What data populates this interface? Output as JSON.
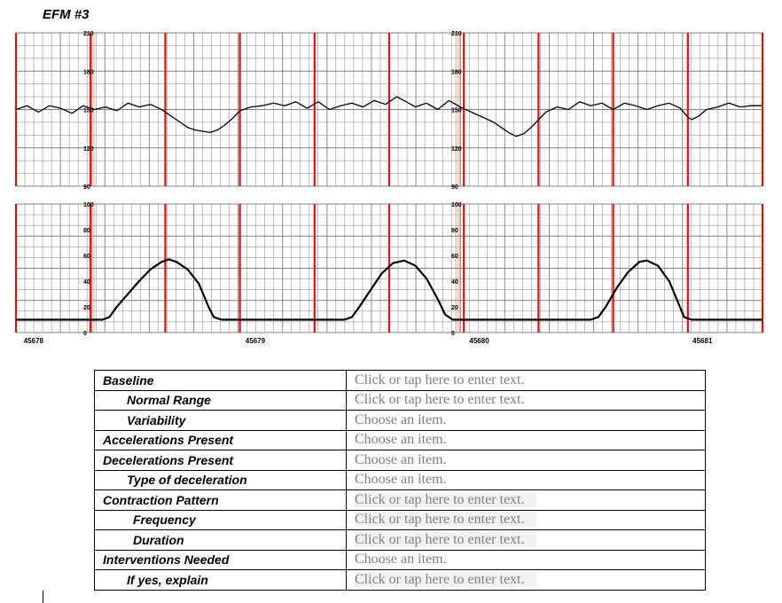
{
  "title": "EFM #3",
  "chart_data": [
    {
      "type": "line",
      "title": "",
      "ylabel": "",
      "ylim": [
        90,
        210
      ],
      "yticks": [
        90,
        120,
        150,
        180,
        210
      ],
      "x_range": [
        0,
        100
      ],
      "colors": {
        "line": "#000000",
        "grid": "#808080",
        "minute_line": "#e01010",
        "scale_band": "#f6d9cc"
      },
      "series": [
        {
          "values": [
            [
              0,
              150
            ],
            [
              1.5,
              153
            ],
            [
              3,
              148
            ],
            [
              4.5,
              153
            ],
            [
              6,
              151
            ],
            [
              7.5,
              147
            ],
            [
              9,
              153
            ],
            [
              10.5,
              150
            ],
            [
              12,
              152
            ],
            [
              13.5,
              149
            ],
            [
              15,
              155
            ],
            [
              16.5,
              152
            ],
            [
              18,
              154
            ],
            [
              19.5,
              150
            ],
            [
              21,
              144
            ],
            [
              22,
              140
            ],
            [
              23,
              136
            ],
            [
              24,
              134
            ],
            [
              25,
              133
            ],
            [
              26,
              132
            ],
            [
              27,
              134
            ],
            [
              28,
              138
            ],
            [
              29,
              143
            ],
            [
              30,
              149
            ],
            [
              31.5,
              152
            ],
            [
              33,
              153
            ],
            [
              34.5,
              155
            ],
            [
              36,
              153
            ],
            [
              37.5,
              156
            ],
            [
              39,
              151
            ],
            [
              40.5,
              156
            ],
            [
              42,
              150
            ],
            [
              43.5,
              153
            ],
            [
              45,
              155
            ],
            [
              46.5,
              152
            ],
            [
              48,
              157
            ],
            [
              49.5,
              154
            ],
            [
              51,
              160
            ],
            [
              52,
              157
            ],
            [
              53.5,
              152
            ],
            [
              55,
              155
            ],
            [
              56.5,
              150
            ],
            [
              58,
              157
            ],
            [
              59.5,
              152
            ],
            [
              61,
              148
            ],
            [
              62.5,
              144
            ],
            [
              64,
              140
            ],
            [
              65,
              136
            ],
            [
              66,
              132
            ],
            [
              67,
              129
            ],
            [
              68,
              131
            ],
            [
              69,
              136
            ],
            [
              70,
              142
            ],
            [
              71,
              148
            ],
            [
              72.5,
              152
            ],
            [
              74,
              150
            ],
            [
              75.5,
              156
            ],
            [
              77,
              153
            ],
            [
              78.5,
              155
            ],
            [
              80,
              150
            ],
            [
              81.5,
              155
            ],
            [
              83,
              153
            ],
            [
              84.5,
              150
            ],
            [
              86,
              153
            ],
            [
              87.5,
              155
            ],
            [
              89,
              151
            ],
            [
              90,
              144
            ],
            [
              90.5,
              142
            ],
            [
              91.5,
              145
            ],
            [
              92.5,
              150
            ],
            [
              94,
              152
            ],
            [
              95.5,
              155
            ],
            [
              97,
              152
            ],
            [
              98.5,
              153
            ],
            [
              100,
              153
            ]
          ]
        }
      ]
    },
    {
      "type": "line",
      "title": "",
      "ylabel": "",
      "ylim": [
        0,
        100
      ],
      "yticks": [
        0,
        20,
        40,
        60,
        80,
        100
      ],
      "x_range": [
        0,
        100
      ],
      "xticks": [
        {
          "x": 2.7,
          "label": "45678"
        },
        {
          "x": 32.4,
          "label": "45679"
        },
        {
          "x": 62.4,
          "label": "45680"
        },
        {
          "x": 92.3,
          "label": "45681"
        }
      ],
      "colors": {
        "line": "#000000"
      },
      "series": [
        {
          "values": [
            [
              0,
              10
            ],
            [
              11.6,
              10
            ],
            [
              12.5,
              12
            ],
            [
              13.5,
              20
            ],
            [
              15,
              30
            ],
            [
              16.5,
              40
            ],
            [
              18,
              49
            ],
            [
              19.5,
              55
            ],
            [
              20.5,
              57
            ],
            [
              21.5,
              55
            ],
            [
              23,
              49
            ],
            [
              24.5,
              38
            ],
            [
              25.8,
              20
            ],
            [
              26.5,
              12
            ],
            [
              27.5,
              10
            ],
            [
              44,
              10
            ],
            [
              45,
              12
            ],
            [
              46,
              20
            ],
            [
              47.5,
              33
            ],
            [
              49,
              46
            ],
            [
              50.5,
              54
            ],
            [
              52,
              56
            ],
            [
              53.5,
              52
            ],
            [
              55,
              42
            ],
            [
              56.5,
              26
            ],
            [
              57.5,
              14
            ],
            [
              58.5,
              10
            ],
            [
              77,
              10
            ],
            [
              78,
              12
            ],
            [
              79,
              20
            ],
            [
              80.5,
              35
            ],
            [
              82,
              47
            ],
            [
              83.5,
              55
            ],
            [
              84.5,
              56
            ],
            [
              86,
              52
            ],
            [
              87.5,
              40
            ],
            [
              88.5,
              26
            ],
            [
              89.5,
              12
            ],
            [
              90.5,
              10
            ],
            [
              100,
              10
            ]
          ]
        }
      ]
    }
  ],
  "assessment": [
    {
      "label": "Baseline",
      "value": "Click or tap here to enter text."
    },
    {
      "label": "Normal Range",
      "value": "Click or tap here to enter text."
    },
    {
      "label": "Variability",
      "value": "Choose an item."
    },
    {
      "label": "Accelerations Present",
      "value": "Choose an item."
    },
    {
      "label": "Decelerations Present",
      "value": "Choose an item."
    },
    {
      "label": "Type of deceleration",
      "value": "Choose an item."
    },
    {
      "label": "Contraction Pattern",
      "value": "Click or tap here to enter text."
    },
    {
      "label": "Frequency",
      "value": "Click or tap here to enter text."
    },
    {
      "label": "Duration",
      "value": "Click or tap here to enter text."
    },
    {
      "label": "Interventions Needed",
      "value": "Choose an item."
    },
    {
      "label": "If yes, explain",
      "value": "Click or tap here to enter text."
    }
  ]
}
